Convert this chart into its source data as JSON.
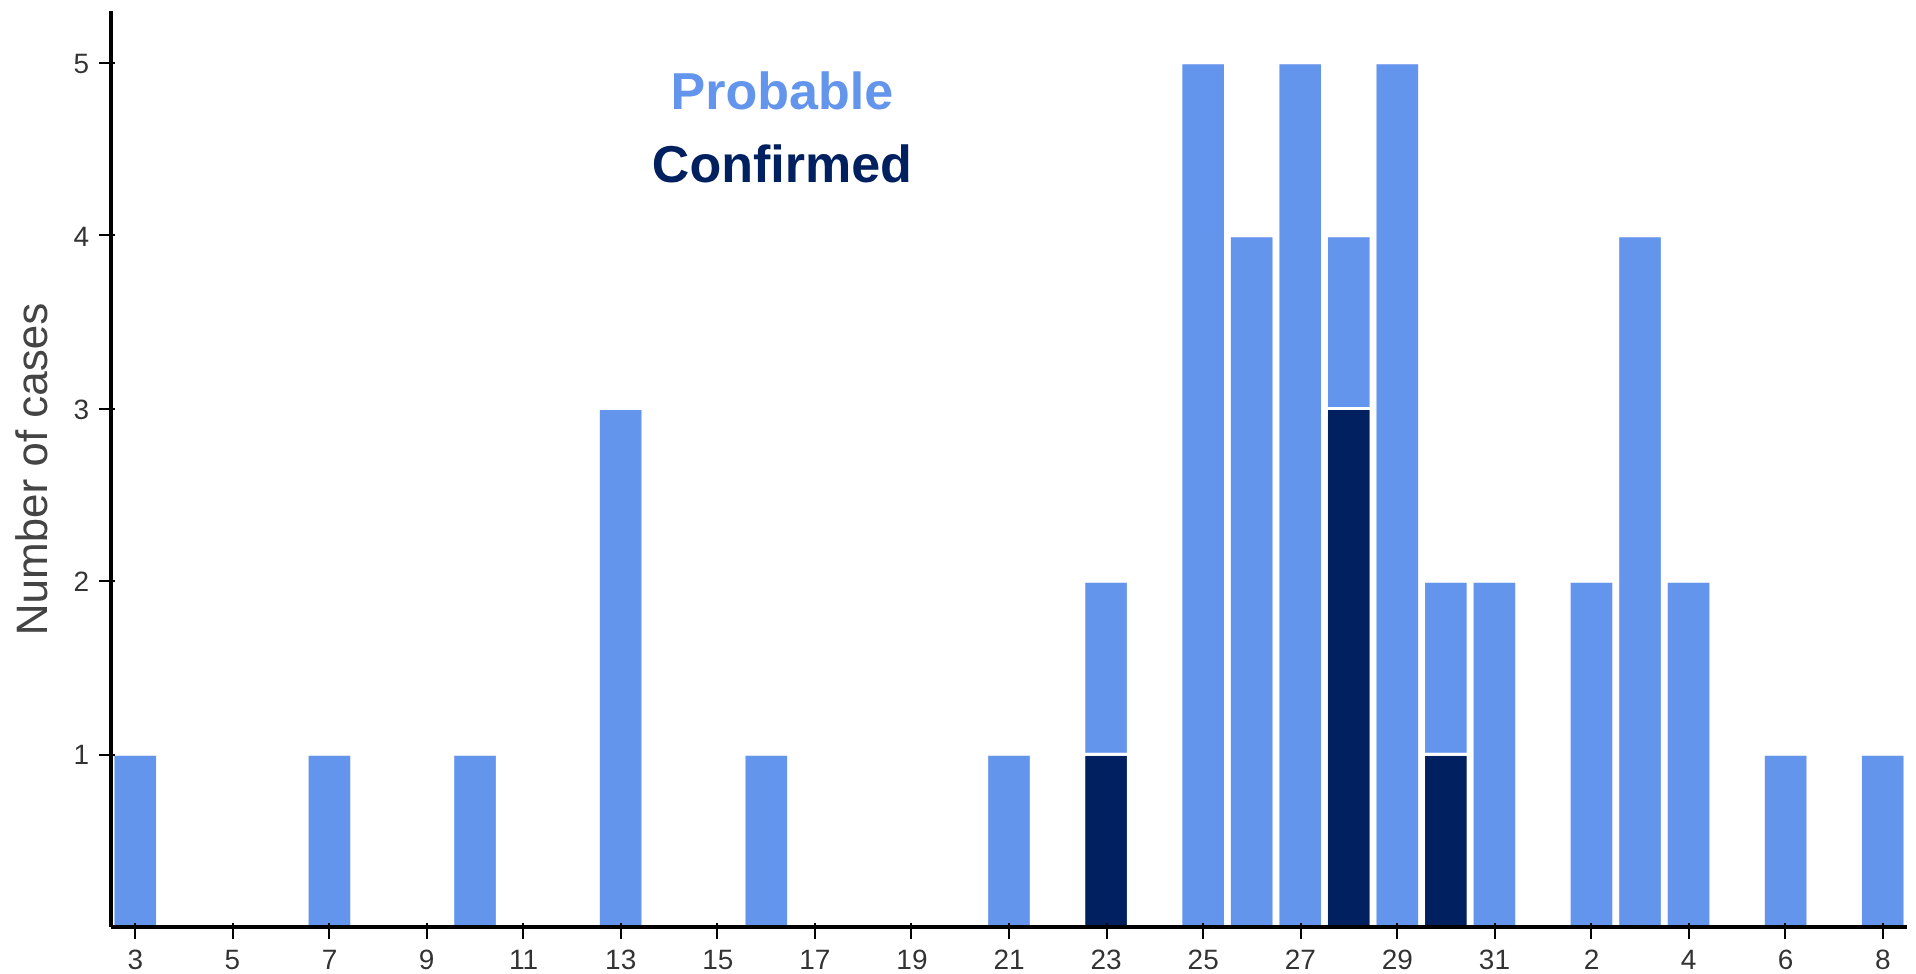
{
  "chart_data": {
    "type": "bar",
    "stacked": true,
    "ylabel": "Number of cases",
    "categories": [
      "3",
      null,
      "5",
      null,
      "7",
      null,
      "9",
      null,
      "11",
      null,
      "13",
      null,
      "15",
      null,
      "17",
      null,
      "19",
      null,
      "21",
      null,
      "23",
      null,
      "25",
      null,
      "27",
      null,
      "29",
      null,
      "31",
      null,
      "2",
      null,
      "4",
      null,
      "6",
      null,
      "8"
    ],
    "series": [
      {
        "name": "Confirmed",
        "color": "#002060",
        "values": [
          null,
          null,
          null,
          null,
          null,
          null,
          null,
          null,
          null,
          null,
          null,
          null,
          null,
          null,
          null,
          null,
          null,
          null,
          null,
          null,
          1,
          null,
          null,
          null,
          null,
          3,
          null,
          1,
          null,
          null,
          null,
          null,
          null,
          null,
          null,
          null,
          null
        ]
      },
      {
        "name": "Probable",
        "color": "#6495ed",
        "values": [
          1,
          null,
          null,
          null,
          1,
          null,
          null,
          1,
          null,
          null,
          3,
          null,
          null,
          1,
          null,
          null,
          null,
          null,
          1,
          null,
          1,
          null,
          5,
          4,
          5,
          1,
          5,
          1,
          2,
          null,
          2,
          4,
          2,
          null,
          1,
          null,
          1
        ]
      }
    ],
    "ylim": [
      0,
      5.3
    ],
    "yticks": [
      1,
      2,
      3,
      4,
      5
    ],
    "grid": false,
    "legend": "top"
  }
}
